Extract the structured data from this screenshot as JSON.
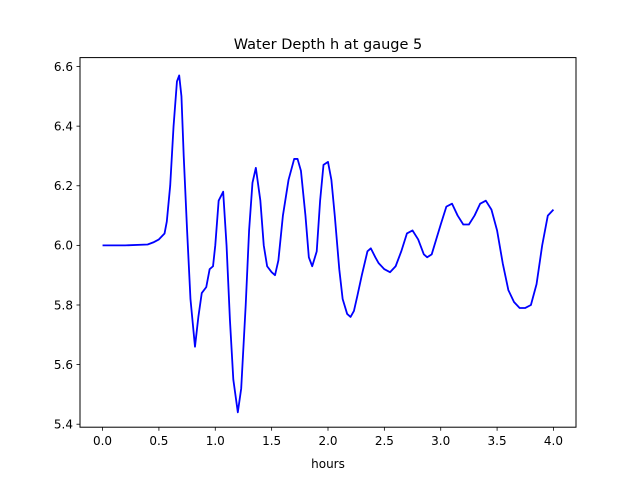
{
  "chart_data": {
    "type": "line",
    "title": "Water Depth h at gauge 5",
    "xlabel": "hours",
    "ylabel": "",
    "xlim": [
      -0.2,
      4.2
    ],
    "ylim": [
      5.39,
      6.63
    ],
    "xticks": [
      0.0,
      0.5,
      1.0,
      1.5,
      2.0,
      2.5,
      3.0,
      3.5,
      4.0
    ],
    "xtick_labels": [
      "0.0",
      "0.5",
      "1.0",
      "1.5",
      "2.0",
      "2.5",
      "3.0",
      "3.5",
      "4.0"
    ],
    "yticks": [
      5.4,
      5.6,
      5.8,
      6.0,
      6.2,
      6.4,
      6.6
    ],
    "ytick_labels": [
      "5.4",
      "5.6",
      "5.8",
      "6.0",
      "6.2",
      "6.4",
      "6.6"
    ],
    "grid": false,
    "legend": "none",
    "series": [
      {
        "color": "#0000ff",
        "x": [
          0.0,
          0.2,
          0.4,
          0.45,
          0.5,
          0.55,
          0.57,
          0.6,
          0.63,
          0.66,
          0.68,
          0.7,
          0.72,
          0.75,
          0.78,
          0.82,
          0.85,
          0.88,
          0.92,
          0.95,
          0.98,
          1.0,
          1.03,
          1.07,
          1.1,
          1.13,
          1.16,
          1.2,
          1.23,
          1.27,
          1.3,
          1.33,
          1.36,
          1.4,
          1.43,
          1.46,
          1.5,
          1.53,
          1.56,
          1.6,
          1.65,
          1.7,
          1.73,
          1.76,
          1.8,
          1.83,
          1.86,
          1.9,
          1.93,
          1.96,
          2.0,
          2.03,
          2.06,
          2.1,
          2.13,
          2.17,
          2.2,
          2.23,
          2.26,
          2.3,
          2.35,
          2.38,
          2.42,
          2.45,
          2.5,
          2.55,
          2.6,
          2.65,
          2.7,
          2.75,
          2.8,
          2.85,
          2.88,
          2.92,
          2.96,
          3.0,
          3.05,
          3.1,
          3.15,
          3.2,
          3.25,
          3.3,
          3.35,
          3.4,
          3.45,
          3.5,
          3.55,
          3.6,
          3.65,
          3.7,
          3.75,
          3.8,
          3.85,
          3.9,
          3.95,
          4.0
        ],
        "y": [
          6.0,
          6.0,
          6.003,
          6.01,
          6.02,
          6.04,
          6.08,
          6.2,
          6.4,
          6.55,
          6.57,
          6.5,
          6.3,
          6.05,
          5.82,
          5.66,
          5.76,
          5.84,
          5.86,
          5.92,
          5.93,
          6.0,
          6.15,
          6.18,
          6.0,
          5.75,
          5.55,
          5.44,
          5.52,
          5.8,
          6.05,
          6.21,
          6.26,
          6.15,
          6.0,
          5.93,
          5.91,
          5.9,
          5.95,
          6.1,
          6.22,
          6.29,
          6.29,
          6.25,
          6.1,
          5.96,
          5.93,
          5.98,
          6.15,
          6.27,
          6.28,
          6.22,
          6.1,
          5.92,
          5.82,
          5.77,
          5.76,
          5.78,
          5.83,
          5.9,
          5.98,
          5.99,
          5.96,
          5.94,
          5.92,
          5.91,
          5.93,
          5.98,
          6.04,
          6.05,
          6.02,
          5.97,
          5.96,
          5.97,
          6.02,
          6.07,
          6.13,
          6.14,
          6.1,
          6.07,
          6.07,
          6.1,
          6.14,
          6.15,
          6.12,
          6.05,
          5.94,
          5.85,
          5.81,
          5.79,
          5.79,
          5.8,
          5.87,
          6.0,
          6.1,
          6.12
        ]
      }
    ]
  }
}
